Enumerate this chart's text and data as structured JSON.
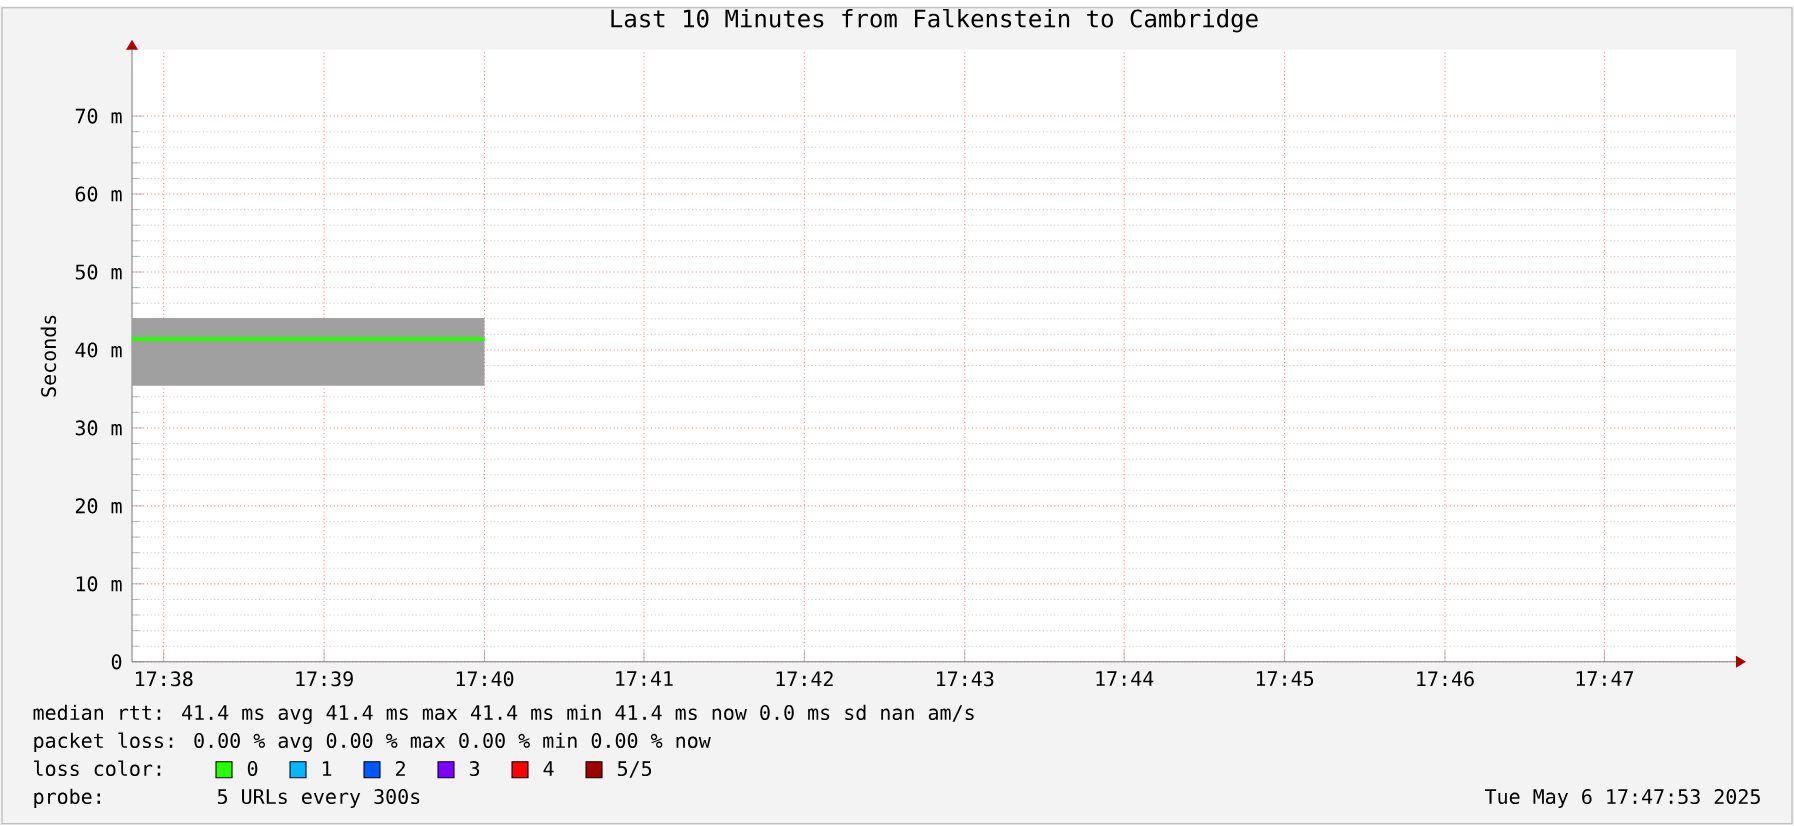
{
  "chart_data": {
    "type": "line",
    "title": "Last 10 Minutes from Falkenstein to Cambridge",
    "ylabel": "Seconds",
    "x": [
      17.63,
      17.6667
    ],
    "xlim": [
      17.63,
      17.797
    ],
    "xticks": [
      {
        "value": 17.6333,
        "label": "17:38"
      },
      {
        "value": 17.65,
        "label": "17:39"
      },
      {
        "value": 17.6667,
        "label": "17:40"
      },
      {
        "value": 17.6833,
        "label": "17:41"
      },
      {
        "value": 17.7,
        "label": "17:42"
      },
      {
        "value": 17.7167,
        "label": "17:43"
      },
      {
        "value": 17.7333,
        "label": "17:44"
      },
      {
        "value": 17.75,
        "label": "17:45"
      },
      {
        "value": 17.7667,
        "label": "17:46"
      },
      {
        "value": 17.7833,
        "label": "17:47"
      }
    ],
    "ylim": [
      0,
      78.5
    ],
    "yticks": [
      0,
      {
        "value": 10,
        "label": "10 m"
      },
      {
        "value": 20,
        "label": "20 m"
      },
      {
        "value": 30,
        "label": "30 m"
      },
      {
        "value": 40,
        "label": "40 m"
      },
      {
        "value": 50,
        "label": "50 m"
      },
      {
        "value": 60,
        "label": "60 m"
      },
      {
        "value": 70,
        "label": "70 m"
      }
    ],
    "grid": true,
    "legend": "bottom",
    "series": [
      {
        "name": "0",
        "color": "#26ff00",
        "values": [
          41.4,
          41.4
        ],
        "lower": [
          35.4,
          35.4
        ],
        "upper": [
          44.1,
          44.1
        ]
      },
      {
        "name": "1",
        "color": "#00b8ff",
        "values": [
          null,
          null
        ]
      },
      {
        "name": "2",
        "color": "#0059ff",
        "values": [
          null,
          null
        ]
      },
      {
        "name": "3",
        "color": "#7e00ff",
        "values": [
          null,
          null
        ]
      },
      {
        "name": "4",
        "color": "#ff0000",
        "values": [
          null,
          null
        ]
      },
      {
        "name": "5/5",
        "color": "#a10000",
        "values": [
          null,
          null
        ]
      }
    ],
    "annotations": [
      "median rtt:  41.4 ms avg  41.4 ms max  41.4 ms min  41.4 ms now  0.0 ms sd  nan   am/s",
      "packet loss: 0.00 % avg  0.00 % max  0.00 % min  0.00 % now",
      "loss color:",
      "probe:",
      "5 URLs every 300s",
      "Tue May  6 17:47:53 2025"
    ]
  }
}
